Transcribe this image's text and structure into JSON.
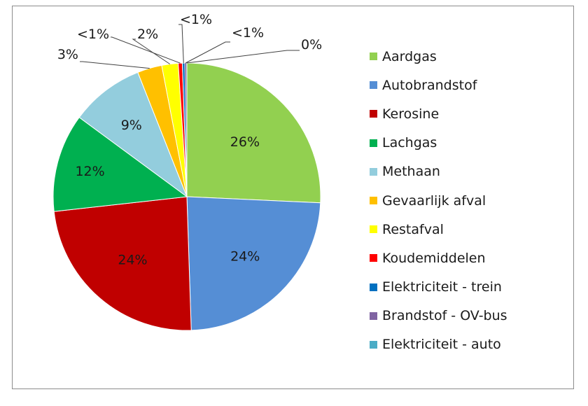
{
  "chart_data": {
    "type": "pie",
    "slices": [
      {
        "name": "Aardgas",
        "value": 26,
        "label": "26%",
        "color": "#92d050"
      },
      {
        "name": "Autobrandstof",
        "value": 24,
        "label": "24%",
        "color": "#558ed5"
      },
      {
        "name": "Kerosine",
        "value": 24,
        "label": "24%",
        "color": "#c00000"
      },
      {
        "name": "Lachgas",
        "value": 12,
        "label": "12%",
        "color": "#00b050"
      },
      {
        "name": "Methaan",
        "value": 9,
        "label": "9%",
        "color": "#93cddd"
      },
      {
        "name": "Gevaarlijk afval",
        "value": 3,
        "label": "3%",
        "color": "#ffc000"
      },
      {
        "name": "Restafval",
        "value": 2,
        "label": "2%",
        "color": "#ffff00"
      },
      {
        "name": "Koudemiddelen",
        "value": 0.5,
        "label": "<1%",
        "color": "#ff0000"
      },
      {
        "name": "Elektriciteit - trein",
        "value": 0.3,
        "label": "<1%",
        "color": "#0070c0"
      },
      {
        "name": "Brandstof - OV-bus",
        "value": 0.2,
        "label": "<1%",
        "color": "#8064a2"
      },
      {
        "name": "Elektriciteit - auto",
        "value": 0.05,
        "label": "0%",
        "color": "#4bacc6"
      }
    ],
    "legend_position": "right"
  }
}
